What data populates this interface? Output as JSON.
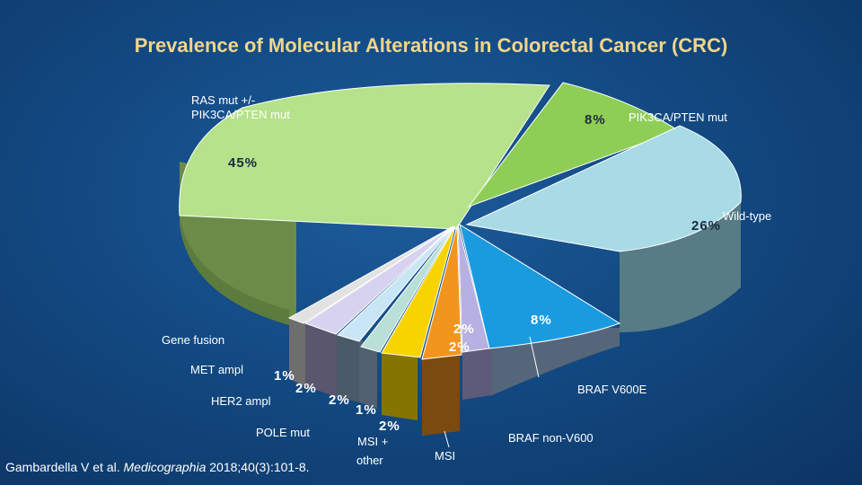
{
  "title": "Prevalence of Molecular Alterations in Colorectal Cancer (CRC)",
  "source": {
    "prefix": "Gambardella V et al. ",
    "journal": "Medicographia",
    "suffix": " 2018;40(3):101-8."
  },
  "colors": {
    "ras": "#b5e28a",
    "pik": "#8fce56",
    "wild": "#a8dbe6",
    "brafv": "#1a9be0",
    "brafn": "#b7b0e3",
    "msi": "#f2951f",
    "msiother": "#f7d400",
    "pole": "#b9dfd7",
    "her2": "#c8e6f5",
    "met": "#d6d2f0",
    "fusion": "#e2e2e2"
  },
  "chart_data": {
    "type": "pie",
    "style": "3d-exploded",
    "title": "Prevalence of Molecular Alterations in Colorectal Cancer (CRC)",
    "slices": [
      {
        "name": "RAS mut +/- PIK3CA/PTEN mut",
        "value": 45,
        "label": "45%"
      },
      {
        "name": "PIK3CA/PTEN mut",
        "value": 8,
        "label": "8%"
      },
      {
        "name": "Wild-type",
        "value": 26,
        "label": "26%"
      },
      {
        "name": "BRAF V600E",
        "value": 8,
        "label": "8%"
      },
      {
        "name": "BRAF non-V600",
        "value": 2,
        "label": "2%"
      },
      {
        "name": "MSI",
        "value": 2,
        "label": "2%"
      },
      {
        "name": "MSI + other",
        "value": 2,
        "label": "2%"
      },
      {
        "name": "POLE mut",
        "value": 1,
        "label": "1%"
      },
      {
        "name": "HER2 ampl",
        "value": 2,
        "label": "2%"
      },
      {
        "name": "MET ampl",
        "value": 2,
        "label": "2%"
      },
      {
        "name": "Gene fusion",
        "value": 1,
        "label": "1%"
      }
    ]
  },
  "labels": {
    "ras_line1": "RAS mut +/-",
    "ras_line2": "PIK3CA/PTEN mut",
    "pik_name": "PIK3CA/PTEN mut",
    "wild_name": "Wild-type",
    "gene_fusion": "Gene fusion",
    "met_ampl": "MET ampl",
    "her2_ampl": "HER2 ampl",
    "pole_mut": "POLE mut",
    "msi_other_l1": "MSI +",
    "msi_other_l2": "other",
    "msi": "MSI",
    "braf_v600e": "BRAF V600E",
    "braf_non": "BRAF non-V600"
  },
  "pct": {
    "ras": "45%",
    "pik": "8%",
    "wild": "26%",
    "brafv": "8%",
    "brafn": "2%",
    "msi": "2%",
    "msiother": "2%",
    "pole": "1%",
    "her2": "2%",
    "met": "2%",
    "fusion": "1%"
  }
}
